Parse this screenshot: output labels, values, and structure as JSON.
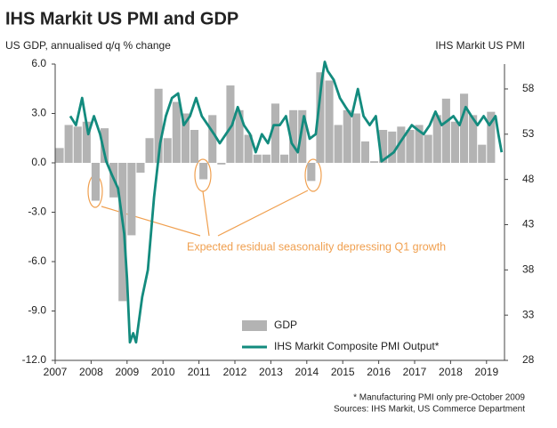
{
  "chart_data": {
    "type": "bar_line",
    "title": "IHS Markit US PMI and GDP",
    "y_label": "US GDP, annualised q/q % change",
    "y2_label": "IHS Markit  US PMI",
    "annotation": "Expected residual seasonality depressing Q1 growth",
    "footnotes": [
      "* Manufacturing PMI only pre-October 2009",
      "Sources: IHS Markit, US Commerce Department"
    ],
    "xlim": [
      2007,
      2019.5
    ],
    "xticks": [
      2007,
      2008,
      2009,
      2010,
      2011,
      2012,
      2013,
      2014,
      2015,
      2016,
      2017,
      2018,
      2019
    ],
    "ylim": [
      -12,
      6
    ],
    "yticks": [
      {
        "value": 6,
        "label": "6.0"
      },
      {
        "value": 3,
        "label": "3.0"
      },
      {
        "value": 0,
        "label": "0.0"
      },
      {
        "value": -3,
        "label": "-3.0"
      },
      {
        "value": -6,
        "label": "-6.0"
      },
      {
        "value": -9,
        "label": "-9.0"
      },
      {
        "value": -12,
        "label": "-12.0"
      }
    ],
    "y2lim": [
      28,
      60.75
    ],
    "y2ticks": [
      58,
      53,
      48,
      43,
      38,
      33,
      28
    ],
    "series": [
      {
        "name": "GDP",
        "type": "bar",
        "color": "#b3b3b3",
        "x": [
          2007,
          2007.25,
          2007.5,
          2007.75,
          2008,
          2008.25,
          2008.5,
          2008.75,
          2009,
          2009.25,
          2009.5,
          2009.75,
          2010,
          2010.25,
          2010.5,
          2010.75,
          2011,
          2011.25,
          2011.5,
          2011.75,
          2012,
          2012.25,
          2012.5,
          2012.75,
          2013,
          2013.25,
          2013.5,
          2013.75,
          2014,
          2014.25,
          2014.5,
          2014.75,
          2015,
          2015.25,
          2015.5,
          2015.75,
          2016,
          2016.25,
          2016.5,
          2016.75,
          2017,
          2017.25,
          2017.5,
          2017.75,
          2018,
          2018.25,
          2018.5,
          2018.75,
          2019
        ],
        "values": [
          0.9,
          2.3,
          2.2,
          2.5,
          -2.3,
          2.1,
          -2.1,
          -8.4,
          -4.4,
          -0.6,
          1.5,
          4.5,
          1.5,
          3.7,
          3.0,
          2.0,
          -1.0,
          2.9,
          -0.1,
          4.7,
          3.2,
          1.7,
          0.5,
          0.5,
          3.6,
          0.5,
          3.2,
          3.2,
          -1.1,
          5.5,
          5.0,
          2.3,
          3.2,
          3.0,
          1.3,
          0.1,
          2.0,
          1.9,
          2.2,
          2.0,
          2.3,
          1.7,
          2.9,
          3.9,
          2.5,
          4.2,
          2.9,
          1.1,
          3.1
        ]
      },
      {
        "name": "IHS Markit Composite PMI Output*",
        "type": "line",
        "axis": "y2",
        "color": "#138b7e",
        "x": [
          2007.42,
          2007.58,
          2007.75,
          2007.92,
          2008.08,
          2008.25,
          2008.42,
          2008.58,
          2008.75,
          2008.92,
          2009,
          2009.08,
          2009.17,
          2009.25,
          2009.42,
          2009.58,
          2009.75,
          2009.92,
          2010.08,
          2010.25,
          2010.42,
          2010.58,
          2010.75,
          2010.92,
          2011.08,
          2011.25,
          2011.42,
          2011.58,
          2011.75,
          2011.92,
          2012.08,
          2012.25,
          2012.42,
          2012.58,
          2012.75,
          2012.92,
          2013.08,
          2013.25,
          2013.42,
          2013.58,
          2013.75,
          2013.92,
          2014.08,
          2014.25,
          2014.42,
          2014.5,
          2014.58,
          2014.75,
          2014.92,
          2015.08,
          2015.25,
          2015.42,
          2015.58,
          2015.75,
          2015.92,
          2016.08,
          2016.25,
          2016.42,
          2016.58,
          2016.75,
          2016.92,
          2017.08,
          2017.25,
          2017.42,
          2017.58,
          2017.75,
          2017.92,
          2018.08,
          2018.25,
          2018.42,
          2018.58,
          2018.75,
          2018.92,
          2019.08,
          2019.25,
          2019.33,
          2019.42
        ],
        "values": [
          55,
          54,
          57,
          53,
          55,
          53,
          50,
          48.5,
          47,
          42,
          37,
          30,
          31,
          30,
          35,
          38,
          46,
          52,
          55,
          57,
          57.5,
          54,
          55,
          57,
          55,
          54,
          53,
          52,
          53,
          54,
          56,
          54,
          53,
          51,
          53,
          52,
          54,
          54,
          55,
          52,
          51,
          55,
          52.5,
          53,
          59,
          61,
          60,
          59,
          57,
          56,
          55,
          58,
          55,
          54,
          55,
          50,
          50.5,
          51,
          52,
          53,
          54,
          53.5,
          53,
          54,
          55.5,
          54,
          54.5,
          55,
          54,
          56,
          55,
          54,
          55,
          54,
          55,
          53,
          51
        ]
      }
    ]
  }
}
